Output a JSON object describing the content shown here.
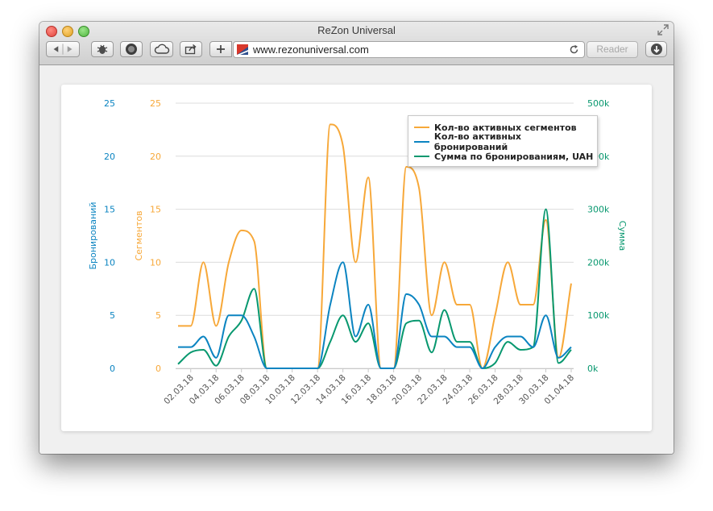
{
  "window": {
    "title": "ReZon Universal",
    "url": "www.rezonuniversal.com",
    "reader_label": "Reader"
  },
  "toolbar_icons": [
    "back-icon",
    "forward-icon",
    "bug-icon",
    "record-icon",
    "cloud-icon",
    "share-icon",
    "plus-icon",
    "reload-icon",
    "download-icon"
  ],
  "colors": {
    "segments": "#f7a839",
    "bookings": "#0b84c1",
    "sum": "#08986f",
    "grid": "#dcdcdc"
  },
  "chart_data": {
    "type": "line",
    "x_tick_labels": [
      "02.03.18",
      "04.03.18",
      "06.03.18",
      "08.03.18",
      "10.03.18",
      "12.03.18",
      "14.03.18",
      "16.03.18",
      "18.03.18",
      "20.03.18",
      "22.03.18",
      "24.03.18",
      "26.03.18",
      "28.03.18",
      "30.03.18",
      "01.04.18"
    ],
    "categories": [
      "01.03.18",
      "02.03.18",
      "03.03.18",
      "04.03.18",
      "05.03.18",
      "06.03.18",
      "07.03.18",
      "08.03.18",
      "09.03.18",
      "10.03.18",
      "11.03.18",
      "12.03.18",
      "13.03.18",
      "14.03.18",
      "15.03.18",
      "16.03.18",
      "17.03.18",
      "18.03.18",
      "19.03.18",
      "20.03.18",
      "21.03.18",
      "22.03.18",
      "23.03.18",
      "24.03.18",
      "25.03.18",
      "26.03.18",
      "27.03.18",
      "28.03.18",
      "29.03.18",
      "30.03.18",
      "31.03.18",
      "01.04.18"
    ],
    "axes": {
      "bookings": {
        "label": "Бронирований",
        "ticks": [
          "0",
          "5",
          "10",
          "15",
          "20",
          "25"
        ],
        "range": [
          0,
          25
        ]
      },
      "segments": {
        "label": "Сегментов",
        "ticks": [
          "0",
          "5",
          "10",
          "15",
          "20",
          "25"
        ],
        "range": [
          0,
          25
        ]
      },
      "sum": {
        "label": "Сумма",
        "ticks": [
          "0k",
          "100k",
          "200k",
          "300k",
          "400k",
          "500k"
        ],
        "range": [
          0,
          500000
        ]
      }
    },
    "series": [
      {
        "name": "Кол-во активных сегментов",
        "axis": "segments",
        "values": [
          4,
          4,
          10,
          4,
          10,
          13,
          12,
          0,
          0,
          0,
          0,
          0,
          23,
          21,
          10,
          18,
          0,
          0,
          19,
          17,
          5,
          10,
          6,
          6,
          0,
          5,
          10,
          6,
          6,
          14,
          1,
          8
        ]
      },
      {
        "name": "Кол-во активных бронирований",
        "axis": "bookings",
        "values": [
          2,
          2,
          3,
          1,
          5,
          5,
          3,
          0,
          0,
          0,
          0,
          0,
          6,
          10,
          3,
          6,
          0,
          0,
          7,
          6,
          3,
          3,
          2,
          2,
          0,
          2,
          3,
          3,
          2,
          5,
          1,
          2
        ]
      },
      {
        "name": "Сумма по бронированиям, UAH",
        "axis": "sum",
        "values": [
          8000,
          30000,
          35000,
          5000,
          60000,
          90000,
          150000,
          0,
          0,
          0,
          0,
          0,
          50000,
          100000,
          50000,
          85000,
          0,
          0,
          85000,
          90000,
          30000,
          110000,
          50000,
          50000,
          0,
          10000,
          50000,
          35000,
          40000,
          300000,
          10000,
          35000
        ]
      }
    ],
    "legend_position": "top-right",
    "grid": true
  }
}
